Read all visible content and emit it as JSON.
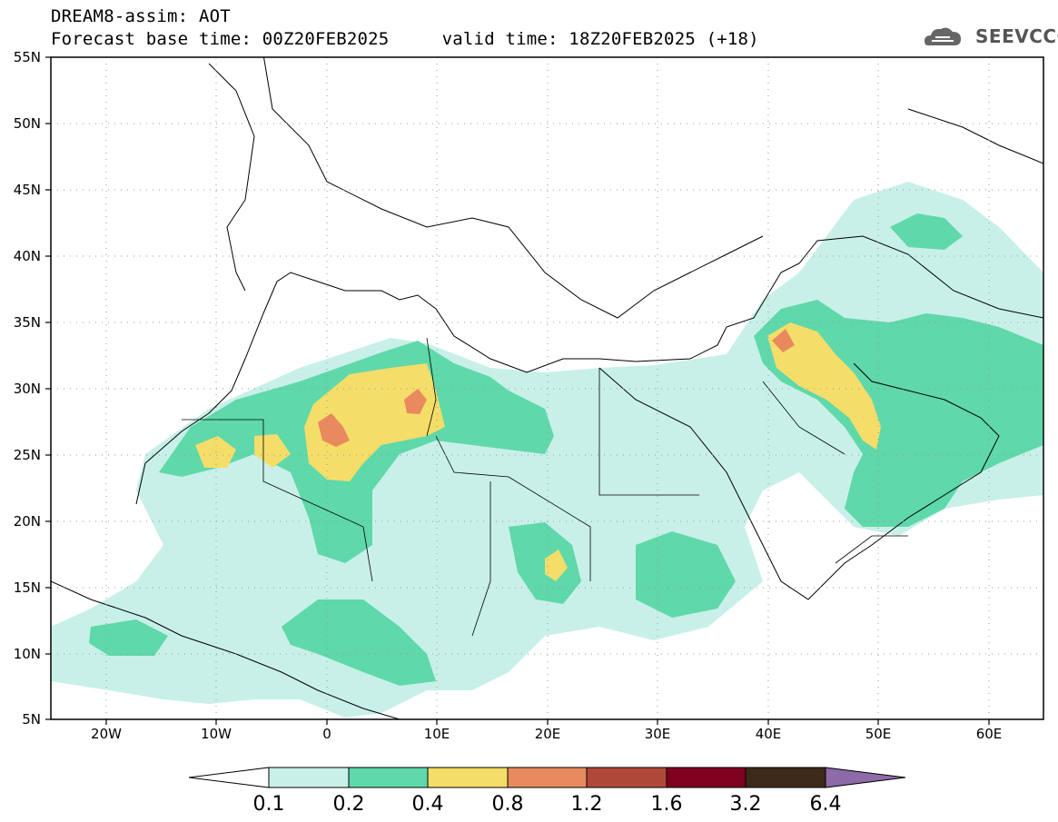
{
  "header": {
    "title_line1": "DREAM8-assim: AOT",
    "title_line2": "Forecast base time: 00Z20FEB2025     valid time: 18Z20FEB2025 (+18)"
  },
  "logo": {
    "text": "SEEVCCC",
    "icon": "cloud-logo-icon"
  },
  "map": {
    "lat_labels": [
      "55N",
      "50N",
      "45N",
      "40N",
      "35N",
      "30N",
      "25N",
      "20N",
      "15N",
      "10N",
      "5N"
    ],
    "lon_labels": [
      "20W",
      "10W",
      "0",
      "10E",
      "20E",
      "30E",
      "40E",
      "50E",
      "60E"
    ],
    "colors": {
      "c01": "#c8f0e8",
      "c02": "#5fd8aa",
      "c04": "#f5dd6a",
      "c08": "#e88a5e",
      "c12": "#b0483a",
      "frame": "#000000",
      "coast": "#000000"
    }
  },
  "colorbar": {
    "labels": [
      "0.1",
      "0.2",
      "0.4",
      "0.8",
      "1.2",
      "1.6",
      "3.2",
      "6.4"
    ],
    "colors": [
      "#ffffff",
      "#c8f0e8",
      "#5fd8aa",
      "#f5dd6a",
      "#e88a5e",
      "#b0483a",
      "#800020",
      "#3d2a1a",
      "#8e6aa8"
    ]
  }
}
